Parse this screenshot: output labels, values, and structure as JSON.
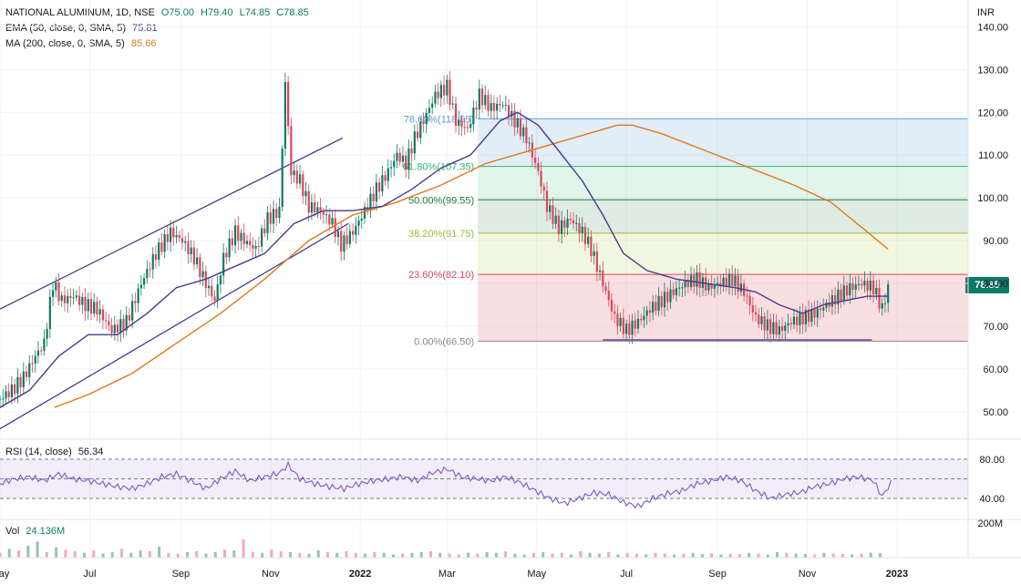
{
  "header": {
    "symbol": "NATIONAL ALUMINUM, 1D, NSE",
    "open": "O75.00",
    "high": "H79.40",
    "low": "L74.85",
    "close": "C78.85",
    "ema_label": "EMA (50, close, 0, SMA, 5)",
    "ema_value": "75.81",
    "ma_label": "MA (200, close, 0, SMA, 5)",
    "ma_value": "85.66",
    "rsi_label": "RSI (14, close)",
    "rsi_value": "56.34",
    "vol_label": "Vol",
    "vol_value": "24.136M",
    "currency": "INR"
  },
  "colors": {
    "up": "#0d7a63",
    "down": "#e0455a",
    "ema": "#4a3a8c",
    "ma": "#e07a1a",
    "channel": "#3b2f8a",
    "rsi": "#7e57c2"
  },
  "chart_data": {
    "type": "candlestick",
    "title": "NATIONAL ALUMINUM, 1D, NSE",
    "last_price": "78.85",
    "y_ticks": [
      {
        "value": 140,
        "label": "140.00"
      },
      {
        "value": 130,
        "label": "130.00"
      },
      {
        "value": 120,
        "label": "120.00"
      },
      {
        "value": 110,
        "label": "110.00"
      },
      {
        "value": 100,
        "label": "100.00"
      },
      {
        "value": 90,
        "label": "90.00"
      },
      {
        "value": 80,
        "label": "80.00"
      },
      {
        "value": 70,
        "label": "70.00"
      },
      {
        "value": 60,
        "label": "60.00"
      },
      {
        "value": 50,
        "label": "50.00"
      }
    ],
    "ylim": [
      44,
      142
    ],
    "x_ticks": [
      "May",
      "Jul",
      "Sep",
      "Nov",
      "2022",
      "Mar",
      "May",
      "Jul",
      "Sep",
      "Nov",
      "2023"
    ],
    "x_tick_days": [
      0,
      61,
      123,
      184,
      245,
      304,
      365,
      426,
      488,
      549,
      610
    ],
    "days_total": 620,
    "fib_levels": [
      {
        "pct": "78.60%",
        "value": 118.5,
        "label": "78.60%(118.55)",
        "color": "#5b9bd5",
        "fill": "rgba(91,155,213,0.18)"
      },
      {
        "pct": "61.80%",
        "value": 107.35,
        "label": "61.80%(107.35)",
        "color": "#2bb673",
        "fill": "rgba(43,182,115,0.14)"
      },
      {
        "pct": "50.00%",
        "value": 99.55,
        "label": "50.00%(99.55)",
        "color": "#1b7a3a",
        "fill": "rgba(27,122,58,0.14)"
      },
      {
        "pct": "38.20%",
        "value": 91.75,
        "label": "38.20%(91.75)",
        "color": "#9bbd3a",
        "fill": "rgba(180,210,80,0.18)"
      },
      {
        "pct": "23.60%",
        "value": 82.1,
        "label": "23.60%(82.10)",
        "color": "#e0455a",
        "fill": "rgba(230,80,90,0.18)"
      },
      {
        "pct": "0.00%",
        "value": 66.5,
        "label": "0.00%(66.50)",
        "color": "#888888",
        "fill": ""
      }
    ],
    "fib_start_day": 325,
    "price_points": [
      [
        0,
        53
      ],
      [
        8,
        55
      ],
      [
        16,
        58
      ],
      [
        24,
        63
      ],
      [
        30,
        66
      ],
      [
        36,
        80
      ],
      [
        42,
        76
      ],
      [
        50,
        77
      ],
      [
        58,
        75
      ],
      [
        66,
        74
      ],
      [
        76,
        69
      ],
      [
        86,
        71
      ],
      [
        96,
        80
      ],
      [
        106,
        87
      ],
      [
        116,
        92
      ],
      [
        124,
        90
      ],
      [
        132,
        86
      ],
      [
        140,
        80
      ],
      [
        146,
        76
      ],
      [
        152,
        86
      ],
      [
        160,
        92
      ],
      [
        166,
        90
      ],
      [
        174,
        88
      ],
      [
        182,
        95
      ],
      [
        190,
        97
      ],
      [
        194,
        127
      ],
      [
        198,
        106
      ],
      [
        204,
        104
      ],
      [
        210,
        98
      ],
      [
        218,
        97
      ],
      [
        226,
        94
      ],
      [
        232,
        89
      ],
      [
        240,
        92
      ],
      [
        248,
        97
      ],
      [
        256,
        102
      ],
      [
        262,
        105
      ],
      [
        270,
        110
      ],
      [
        276,
        108
      ],
      [
        282,
        114
      ],
      [
        288,
        118
      ],
      [
        296,
        124
      ],
      [
        304,
        126
      ],
      [
        310,
        118
      ],
      [
        318,
        116
      ],
      [
        326,
        124
      ],
      [
        334,
        121
      ],
      [
        342,
        122
      ],
      [
        350,
        118
      ],
      [
        358,
        114
      ],
      [
        366,
        106
      ],
      [
        372,
        98
      ],
      [
        380,
        93
      ],
      [
        388,
        95
      ],
      [
        396,
        92
      ],
      [
        402,
        88
      ],
      [
        410,
        80
      ],
      [
        418,
        72
      ],
      [
        426,
        69
      ],
      [
        434,
        71
      ],
      [
        442,
        74
      ],
      [
        450,
        76
      ],
      [
        458,
        78
      ],
      [
        466,
        80
      ],
      [
        474,
        81
      ],
      [
        482,
        79
      ],
      [
        490,
        80
      ],
      [
        498,
        81
      ],
      [
        506,
        78
      ],
      [
        514,
        72
      ],
      [
        522,
        70
      ],
      [
        530,
        69
      ],
      [
        538,
        71
      ],
      [
        546,
        72
      ],
      [
        554,
        73
      ],
      [
        562,
        75
      ],
      [
        570,
        77
      ],
      [
        578,
        79
      ],
      [
        586,
        80
      ],
      [
        594,
        79
      ],
      [
        600,
        74
      ],
      [
        604,
        79
      ]
    ],
    "ema_points": [
      [
        0,
        51
      ],
      [
        20,
        55
      ],
      [
        40,
        63
      ],
      [
        60,
        68
      ],
      [
        80,
        68
      ],
      [
        100,
        73
      ],
      [
        120,
        79
      ],
      [
        140,
        81
      ],
      [
        160,
        84
      ],
      [
        180,
        87
      ],
      [
        200,
        94
      ],
      [
        220,
        97
      ],
      [
        240,
        97
      ],
      [
        260,
        98
      ],
      [
        280,
        102
      ],
      [
        300,
        107
      ],
      [
        320,
        110
      ],
      [
        340,
        118
      ],
      [
        352,
        120
      ],
      [
        366,
        117
      ],
      [
        380,
        111
      ],
      [
        396,
        104
      ],
      [
        410,
        96
      ],
      [
        424,
        87
      ],
      [
        440,
        83
      ],
      [
        460,
        81
      ],
      [
        480,
        80
      ],
      [
        500,
        79
      ],
      [
        514,
        78
      ],
      [
        530,
        75
      ],
      [
        546,
        73
      ],
      [
        560,
        75
      ],
      [
        575,
        76
      ],
      [
        590,
        77
      ],
      [
        604,
        77
      ]
    ],
    "ma_points": [
      [
        37,
        51
      ],
      [
        60,
        54
      ],
      [
        90,
        59
      ],
      [
        120,
        66
      ],
      [
        150,
        73
      ],
      [
        180,
        81
      ],
      [
        210,
        90
      ],
      [
        240,
        96
      ],
      [
        270,
        99
      ],
      [
        300,
        103
      ],
      [
        330,
        108
      ],
      [
        350,
        110
      ],
      [
        370,
        112
      ],
      [
        400,
        115
      ],
      [
        420,
        117
      ],
      [
        430,
        117
      ],
      [
        450,
        115
      ],
      [
        480,
        111
      ],
      [
        510,
        107
      ],
      [
        540,
        103
      ],
      [
        565,
        99
      ],
      [
        590,
        92
      ],
      [
        604,
        88
      ]
    ],
    "channel_upper": [
      [
        0,
        74
      ],
      [
        233,
        114
      ]
    ],
    "channel_lower": [
      [
        0,
        46
      ],
      [
        237,
        94
      ]
    ],
    "support_line": [
      [
        410,
        66.8
      ],
      [
        593,
        66.8
      ]
    ],
    "rsi_ticks": [
      {
        "value": 80,
        "label": "80.00"
      },
      {
        "value": 40,
        "label": "40.00"
      }
    ],
    "rsi_points": [
      [
        0,
        55
      ],
      [
        10,
        60
      ],
      [
        20,
        62
      ],
      [
        30,
        58
      ],
      [
        40,
        65
      ],
      [
        50,
        60
      ],
      [
        60,
        58
      ],
      [
        70,
        55
      ],
      [
        80,
        52
      ],
      [
        90,
        50
      ],
      [
        100,
        55
      ],
      [
        110,
        62
      ],
      [
        120,
        65
      ],
      [
        130,
        58
      ],
      [
        140,
        50
      ],
      [
        150,
        60
      ],
      [
        160,
        68
      ],
      [
        170,
        58
      ],
      [
        180,
        62
      ],
      [
        190,
        66
      ],
      [
        196,
        74
      ],
      [
        204,
        60
      ],
      [
        214,
        55
      ],
      [
        224,
        52
      ],
      [
        234,
        50
      ],
      [
        244,
        55
      ],
      [
        254,
        58
      ],
      [
        264,
        60
      ],
      [
        274,
        62
      ],
      [
        284,
        58
      ],
      [
        294,
        66
      ],
      [
        304,
        70
      ],
      [
        314,
        62
      ],
      [
        324,
        60
      ],
      [
        334,
        58
      ],
      [
        344,
        62
      ],
      [
        354,
        56
      ],
      [
        364,
        48
      ],
      [
        374,
        40
      ],
      [
        384,
        35
      ],
      [
        394,
        40
      ],
      [
        404,
        46
      ],
      [
        414,
        44
      ],
      [
        424,
        36
      ],
      [
        434,
        32
      ],
      [
        444,
        40
      ],
      [
        454,
        45
      ],
      [
        464,
        48
      ],
      [
        474,
        55
      ],
      [
        484,
        58
      ],
      [
        494,
        62
      ],
      [
        504,
        58
      ],
      [
        514,
        48
      ],
      [
        524,
        40
      ],
      [
        534,
        44
      ],
      [
        544,
        46
      ],
      [
        554,
        52
      ],
      [
        564,
        55
      ],
      [
        574,
        60
      ],
      [
        584,
        62
      ],
      [
        594,
        58
      ],
      [
        600,
        42
      ],
      [
        606,
        56
      ]
    ],
    "volume_note": "daily volume bars, max around 200M",
    "vol_tick": "200M",
    "vol_values": [
      12,
      22,
      18,
      30,
      40,
      14,
      26,
      20,
      16,
      12,
      18,
      10,
      14,
      22,
      12,
      18,
      16,
      28,
      12,
      10,
      14,
      16,
      10,
      14,
      20,
      18,
      46,
      14,
      12,
      20,
      16,
      14,
      12,
      10,
      18,
      14,
      12,
      16,
      12,
      10,
      14,
      12,
      8,
      10,
      12,
      14,
      16,
      12,
      10,
      8,
      12,
      10,
      14,
      12,
      16,
      10,
      8,
      12,
      14,
      10,
      12,
      8,
      16,
      12,
      10,
      14,
      8,
      12,
      10,
      8,
      12,
      10,
      8,
      10,
      12,
      9,
      11,
      8,
      10,
      9,
      12,
      10,
      8,
      14,
      12,
      10,
      9,
      8,
      12,
      10,
      9,
      8,
      10,
      12,
      11
    ]
  }
}
